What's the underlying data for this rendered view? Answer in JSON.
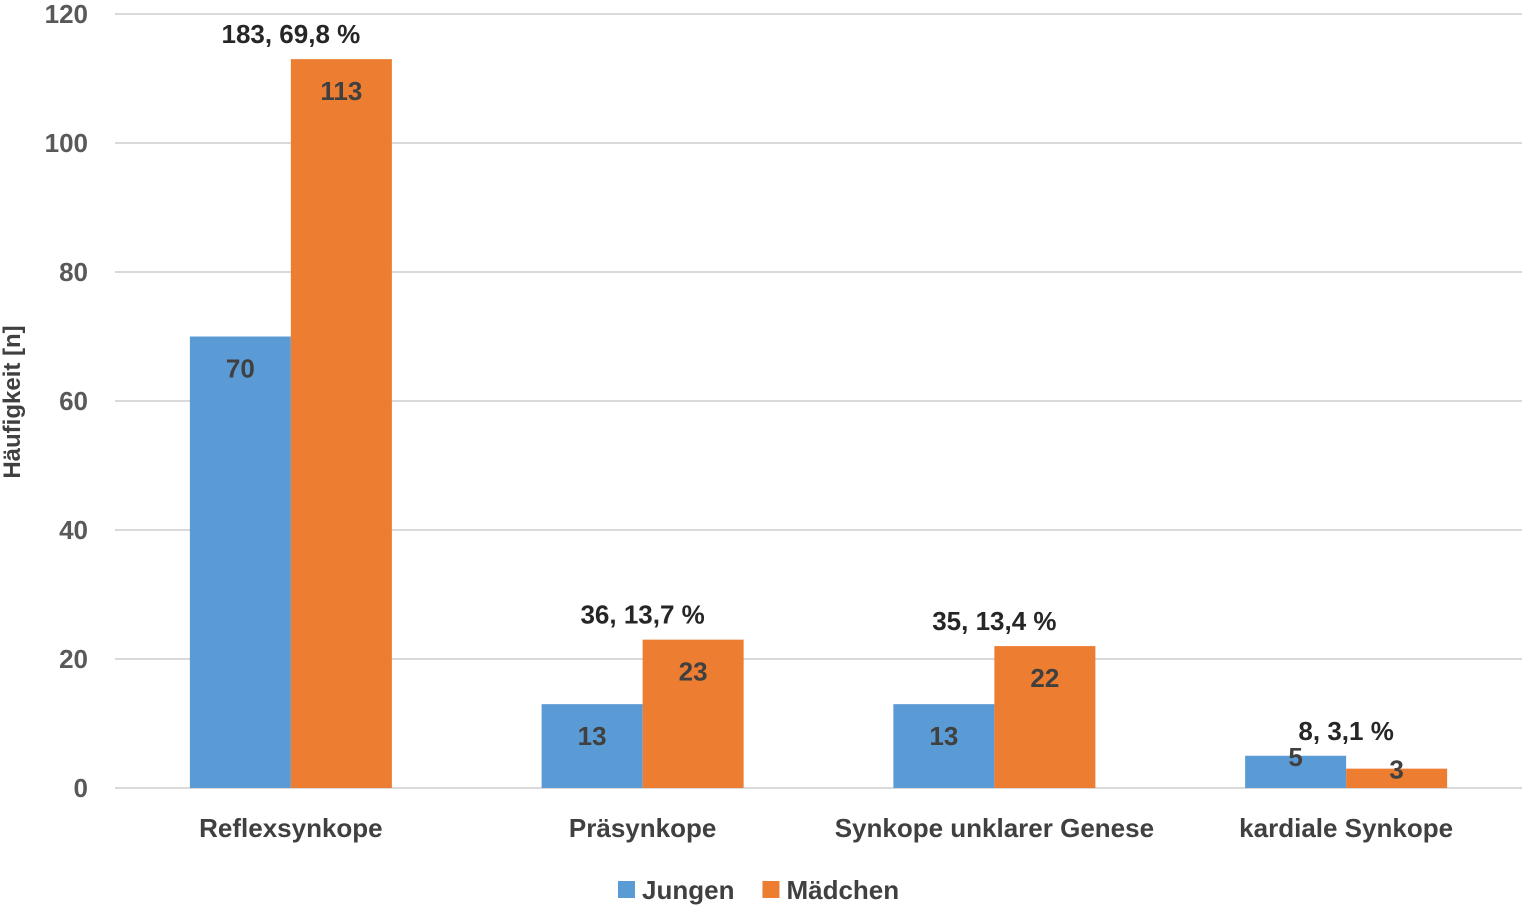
{
  "chart_data": {
    "type": "bar",
    "title": "",
    "xlabel": "",
    "ylabel": "Häufigkeit [n]",
    "ylim": [
      0,
      120
    ],
    "yticks": [
      0,
      20,
      40,
      60,
      80,
      100,
      120
    ],
    "grid": true,
    "legend_position": "bottom",
    "categories": [
      "Reflexsynkope",
      "Präsynkope",
      "Synkope unklarer Genese",
      "kardiale Synkope"
    ],
    "series": [
      {
        "name": "Jungen",
        "color": "#5b9bd5",
        "values": [
          70,
          13,
          13,
          5
        ]
      },
      {
        "name": "Mädchen",
        "color": "#ed7d31",
        "values": [
          113,
          23,
          22,
          3
        ]
      }
    ],
    "totals": [
      "183, 69,8 %",
      "36, 13,7 %",
      "35, 13,4 %",
      "8, 3,1 %"
    ]
  }
}
